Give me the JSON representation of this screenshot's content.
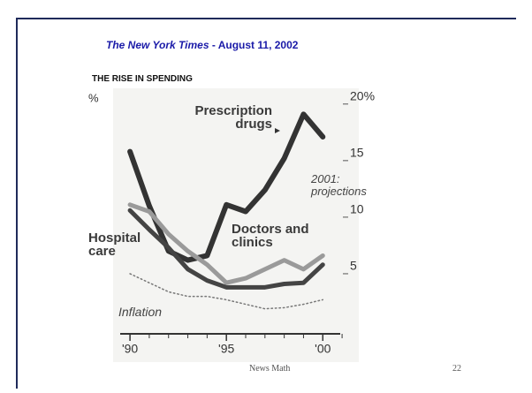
{
  "source": {
    "name": "The New York Times",
    "date": " - August 11, 2002"
  },
  "footer": {
    "text": "News Math",
    "page": "22"
  },
  "chart_data": {
    "type": "line",
    "title": "THE RISE IN SPENDING",
    "ylabel": "%",
    "x": [
      1990,
      1991,
      1992,
      1993,
      1994,
      1995,
      1996,
      1997,
      1998,
      1999,
      2000
    ],
    "series": [
      {
        "name": "Prescription drugs",
        "color": "#333333",
        "values": [
          15.8,
          11,
          7,
          6.2,
          6.6,
          11.1,
          10.5,
          12.4,
          15.2,
          19.1,
          17.1
        ]
      },
      {
        "name": "Hospital care",
        "color": "#444444",
        "values": [
          10.6,
          8.9,
          7.3,
          5.4,
          4.4,
          3.8,
          3.8,
          3.8,
          4.1,
          4.2,
          5.8
        ]
      },
      {
        "name": "Doctors and clinics",
        "color": "#9a9a9a",
        "values": [
          11.1,
          10.5,
          8.5,
          7,
          5.8,
          4.2,
          4.6,
          5.4,
          6.2,
          5.4,
          6.6
        ]
      },
      {
        "name": "Inflation",
        "color": "#777777",
        "style": "dotted",
        "values": [
          5,
          4.2,
          3.4,
          3,
          3,
          2.7,
          2.3,
          1.9,
          2,
          2.3,
          2.7
        ]
      }
    ],
    "annotation": "2001: projections",
    "xlim": [
      1989.4,
      2001.5
    ],
    "ylim": [
      0,
      21
    ],
    "xticks": [
      {
        "value": 1990,
        "label": "'90"
      },
      {
        "value": 1995,
        "label": "'95"
      },
      {
        "value": 2000,
        "label": "'00"
      }
    ],
    "yticks": [
      5,
      10,
      15,
      {
        "value": 20,
        "label": "20%"
      }
    ]
  }
}
